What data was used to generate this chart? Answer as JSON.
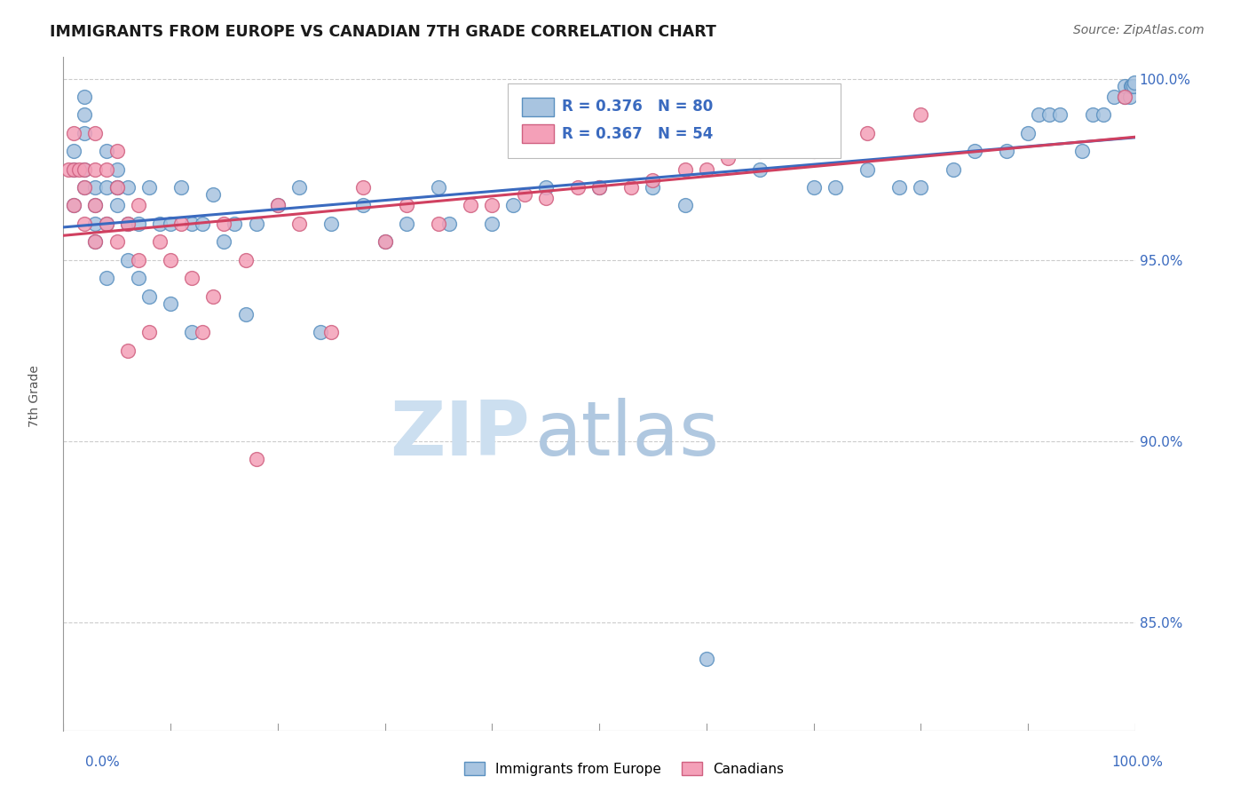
{
  "title": "IMMIGRANTS FROM EUROPE VS CANADIAN 7TH GRADE CORRELATION CHART",
  "source": "Source: ZipAtlas.com",
  "ylabel": "7th Grade",
  "series1_label": "Immigrants from Europe",
  "series2_label": "Canadians",
  "series1_R": 0.376,
  "series1_N": 80,
  "series2_R": 0.367,
  "series2_N": 54,
  "series1_color": "#a8c4e0",
  "series1_edge": "#5a90c0",
  "series2_color": "#f4a0b8",
  "series2_edge": "#d06080",
  "line1_color": "#3a6abf",
  "line2_color": "#d04060",
  "background_color": "#ffffff",
  "watermark_zip": "ZIP",
  "watermark_atlas": "atlas",
  "grid_color": "#cccccc",
  "series1_x": [
    0.01,
    0.01,
    0.01,
    0.02,
    0.02,
    0.02,
    0.02,
    0.02,
    0.03,
    0.03,
    0.03,
    0.03,
    0.04,
    0.04,
    0.04,
    0.04,
    0.05,
    0.05,
    0.05,
    0.05,
    0.06,
    0.06,
    0.06,
    0.07,
    0.07,
    0.08,
    0.08,
    0.09,
    0.1,
    0.1,
    0.11,
    0.12,
    0.12,
    0.13,
    0.14,
    0.15,
    0.16,
    0.17,
    0.18,
    0.2,
    0.22,
    0.24,
    0.25,
    0.28,
    0.3,
    0.32,
    0.35,
    0.36,
    0.4,
    0.42,
    0.45,
    0.5,
    0.55,
    0.58,
    0.6,
    0.62,
    0.65,
    0.7,
    0.72,
    0.75,
    0.78,
    0.8,
    0.83,
    0.85,
    0.88,
    0.9,
    0.91,
    0.92,
    0.93,
    0.95,
    0.96,
    0.97,
    0.98,
    0.99,
    0.99,
    0.995,
    0.996,
    0.997,
    0.998,
    0.999
  ],
  "series1_y": [
    0.965,
    0.975,
    0.98,
    0.97,
    0.975,
    0.985,
    0.99,
    0.995,
    0.955,
    0.96,
    0.965,
    0.97,
    0.945,
    0.96,
    0.97,
    0.98,
    0.965,
    0.97,
    0.97,
    0.975,
    0.95,
    0.96,
    0.97,
    0.945,
    0.96,
    0.94,
    0.97,
    0.96,
    0.938,
    0.96,
    0.97,
    0.93,
    0.96,
    0.96,
    0.968,
    0.955,
    0.96,
    0.935,
    0.96,
    0.965,
    0.97,
    0.93,
    0.96,
    0.965,
    0.955,
    0.96,
    0.97,
    0.96,
    0.96,
    0.965,
    0.97,
    0.97,
    0.97,
    0.965,
    0.84,
    0.98,
    0.975,
    0.97,
    0.97,
    0.975,
    0.97,
    0.97,
    0.975,
    0.98,
    0.98,
    0.985,
    0.99,
    0.99,
    0.99,
    0.98,
    0.99,
    0.99,
    0.995,
    0.995,
    0.998,
    0.995,
    0.998,
    0.998,
    0.998,
    0.999
  ],
  "series2_x": [
    0.005,
    0.01,
    0.01,
    0.01,
    0.015,
    0.02,
    0.02,
    0.02,
    0.03,
    0.03,
    0.03,
    0.03,
    0.04,
    0.04,
    0.05,
    0.05,
    0.05,
    0.06,
    0.06,
    0.07,
    0.07,
    0.08,
    0.09,
    0.1,
    0.11,
    0.12,
    0.13,
    0.14,
    0.15,
    0.17,
    0.18,
    0.2,
    0.22,
    0.25,
    0.28,
    0.3,
    0.32,
    0.35,
    0.38,
    0.4,
    0.43,
    0.45,
    0.48,
    0.5,
    0.53,
    0.55,
    0.58,
    0.6,
    0.62,
    0.65,
    0.7,
    0.75,
    0.8,
    0.99
  ],
  "series2_y": [
    0.975,
    0.965,
    0.975,
    0.985,
    0.975,
    0.96,
    0.97,
    0.975,
    0.955,
    0.965,
    0.975,
    0.985,
    0.96,
    0.975,
    0.955,
    0.97,
    0.98,
    0.925,
    0.96,
    0.95,
    0.965,
    0.93,
    0.955,
    0.95,
    0.96,
    0.945,
    0.93,
    0.94,
    0.96,
    0.95,
    0.895,
    0.965,
    0.96,
    0.93,
    0.97,
    0.955,
    0.965,
    0.96,
    0.965,
    0.965,
    0.968,
    0.967,
    0.97,
    0.97,
    0.97,
    0.972,
    0.975,
    0.975,
    0.978,
    0.98,
    0.98,
    0.985,
    0.99,
    0.995
  ],
  "ylim_low": 0.82,
  "ylim_high": 1.006,
  "ytick_vals": [
    0.85,
    0.9,
    0.95,
    1.0
  ],
  "ytick_labels": [
    "85.0%",
    "90.0%",
    "95.0%",
    "100.0%"
  ]
}
